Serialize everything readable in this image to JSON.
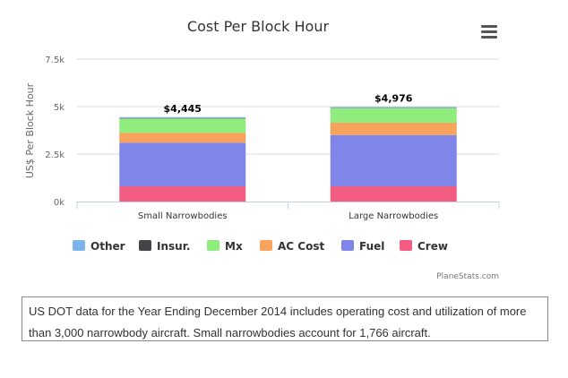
{
  "chart_data": {
    "type": "bar",
    "stacked": true,
    "title": "Cost Per Block Hour",
    "xlabel": "",
    "ylabel": "US$ Per Block Hour",
    "ylim": [
      0,
      7500
    ],
    "yticks": [
      "0k",
      "2.5k",
      "5k",
      "7.5k"
    ],
    "ytick_values": [
      0,
      2500,
      5000,
      7500
    ],
    "grid": true,
    "legend_position": "bottom-left",
    "categories": [
      "Small Narrowbodies",
      "Large Narrowbodies"
    ],
    "totals": [
      "$4,445",
      "$4,976"
    ],
    "total_values": [
      4445,
      4976
    ],
    "series": [
      {
        "name": "Other",
        "color": "#7cb5ec",
        "values": [
          60,
          40
        ]
      },
      {
        "name": "Insur.",
        "color": "#434348",
        "values": [
          15,
          16
        ]
      },
      {
        "name": "Mx",
        "color": "#90ed7d",
        "values": [
          750,
          770
        ]
      },
      {
        "name": "AC Cost",
        "color": "#f7a35c",
        "values": [
          520,
          650
        ]
      },
      {
        "name": "Fuel",
        "color": "#8085e9",
        "values": [
          2300,
          2700
        ]
      },
      {
        "name": "Crew",
        "color": "#f15c80",
        "values": [
          800,
          800
        ]
      }
    ],
    "credits": "PlaneStats.com"
  },
  "note": "US DOT data for the Year Ending December 2014 includes operating cost and utilization of more than 3,000 narrowbody aircraft. Small narrowbodies account for 1,766 aircraft."
}
